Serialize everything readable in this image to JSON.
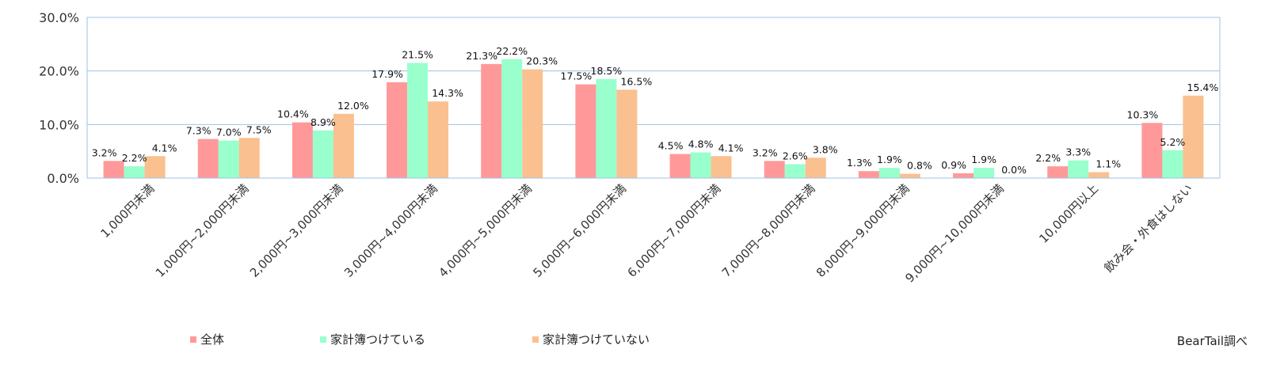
{
  "chart_data": {
    "type": "bar",
    "categories": [
      "1,000円未満",
      "1,000円~2,000円未満",
      "2,000円~3,000円未満",
      "3,000円~4,000円未満",
      "4,000円~5,000円未満",
      "5,000円~6,000円未満",
      "6,000円~7,000円未満",
      "7,000円~8,000円未満",
      "8,000円~9,000円未満",
      "9,000円~10,000円未満",
      "10,000円以上",
      "飲み会・外食はしない"
    ],
    "series": [
      {
        "name": "全体",
        "color": "#ff9999",
        "values": [
          3.2,
          7.3,
          10.4,
          17.9,
          21.3,
          17.5,
          4.5,
          3.2,
          1.3,
          0.9,
          2.2,
          10.3
        ],
        "labels": [
          "3.2%",
          "7.3%",
          "10.4%",
          "17.9%",
          "21.3%",
          "17.5%",
          "4.5%",
          "3.2%",
          "1.3%",
          "0.9%",
          "2.2%",
          "10.3%"
        ]
      },
      {
        "name": "家計簿つけている",
        "color": "#99ffcc",
        "values": [
          2.2,
          7.0,
          8.9,
          21.5,
          22.2,
          18.5,
          4.8,
          2.6,
          1.9,
          1.9,
          3.3,
          5.2
        ],
        "labels": [
          "2.2%",
          "7.0%",
          "8.9%",
          "21.5%",
          "22.2%",
          "18.5%",
          "4.8%",
          "2.6%",
          "1.9%",
          "1.9%",
          "3.3%",
          "5.2%"
        ]
      },
      {
        "name": "家計簿つけていない",
        "color": "#fac090",
        "values": [
          4.1,
          7.5,
          12.0,
          14.3,
          20.3,
          16.5,
          4.1,
          3.8,
          0.8,
          0.0,
          1.1,
          15.4
        ],
        "labels": [
          "4.1%",
          "7.5%",
          "12.0%",
          "14.3%",
          "20.3%",
          "16.5%",
          "4.1%",
          "3.8%",
          "0.8%",
          "0.0%",
          "1.1%",
          "15.4%"
        ]
      }
    ],
    "ylim": [
      0,
      30
    ],
    "yticks": [
      "0.0%",
      "10.0%",
      "20.0%",
      "30.0%"
    ],
    "ytick_values": [
      0,
      10,
      20,
      30
    ],
    "grid": true,
    "legend_position": "bottom-left",
    "plot_border_color": "#9dc3e6",
    "source_note": "BearTail調べ"
  }
}
